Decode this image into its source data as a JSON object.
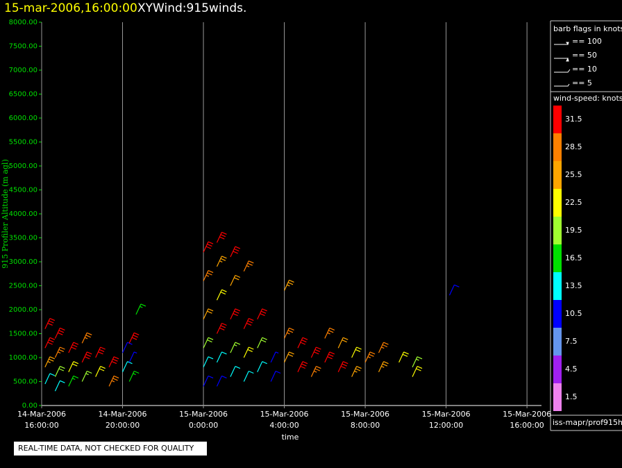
{
  "chart_data": {
    "type": "wind-barb",
    "title_time": "15-mar-2006,16:00:00",
    "title": "XYWind:915winds.",
    "y_label": "915 Profiler Altitude (m agl)",
    "x_label": "time",
    "ylim": [
      0,
      8000
    ],
    "yticks": [
      {
        "value": 0,
        "label": "0.00"
      },
      {
        "value": 500,
        "label": "500.00"
      },
      {
        "value": 1000,
        "label": "1000.00"
      },
      {
        "value": 1500,
        "label": "1500.00"
      },
      {
        "value": 2000,
        "label": "2000.00"
      },
      {
        "value": 2500,
        "label": "2500.00"
      },
      {
        "value": 3000,
        "label": "3000.00"
      },
      {
        "value": 3500,
        "label": "3500.00"
      },
      {
        "value": 4000,
        "label": "4000.00"
      },
      {
        "value": 4500,
        "label": "4500.00"
      },
      {
        "value": 5000,
        "label": "5000.00"
      },
      {
        "value": 5500,
        "label": "5500.00"
      },
      {
        "value": 6000,
        "label": "6000.00"
      },
      {
        "value": 6500,
        "label": "6500.00"
      },
      {
        "value": 7000,
        "label": "7000.00"
      },
      {
        "value": 7500,
        "label": "7500.00"
      },
      {
        "value": 8000,
        "label": "8000.00"
      }
    ],
    "xlim": [
      "14-Mar-2006 16:00:00",
      "15-Mar-2006 16:43:00"
    ],
    "xticks": [
      {
        "value": "14-Mar-2006 16:00:00",
        "label": [
          "14-Mar-2006",
          "16:00:00"
        ]
      },
      {
        "value": "14-Mar-2006 20:00:00",
        "label": [
          "14-Mar-2006",
          "20:00:00"
        ]
      },
      {
        "value": "15-Mar-2006 00:00:00",
        "label": [
          "15-Mar-2006",
          "0:00:00"
        ]
      },
      {
        "value": "15-Mar-2006 04:00:00",
        "label": [
          "15-Mar-2006",
          "4:00:00"
        ]
      },
      {
        "value": "15-Mar-2006 08:00:00",
        "label": [
          "15-Mar-2006",
          "8:00:00"
        ]
      },
      {
        "value": "15-Mar-2006 12:00:00",
        "label": [
          "15-Mar-2006",
          "12:00:00"
        ]
      },
      {
        "value": "15-Mar-2006 16:00:00",
        "label": [
          "15-Mar-2006",
          "16:00:00"
        ]
      }
    ],
    "barbs": {
      "x": [
        "14-Mar-2006 16:10",
        "14-Mar-2006 16:10",
        "14-Mar-2006 16:10",
        "14-Mar-2006 16:10",
        "14-Mar-2006 16:40",
        "14-Mar-2006 16:40",
        "14-Mar-2006 16:40",
        "14-Mar-2006 16:40",
        "14-Mar-2006 17:20",
        "14-Mar-2006 17:20",
        "14-Mar-2006 17:20",
        "14-Mar-2006 18:00",
        "14-Mar-2006 18:00",
        "14-Mar-2006 18:00",
        "14-Mar-2006 18:40",
        "14-Mar-2006 18:40",
        "14-Mar-2006 19:20",
        "14-Mar-2006 19:20",
        "14-Mar-2006 20:00",
        "14-Mar-2006 20:00",
        "14-Mar-2006 20:20",
        "14-Mar-2006 20:20",
        "14-Mar-2006 20:20",
        "14-Mar-2006 20:40",
        "15-Mar-2006 00:00",
        "15-Mar-2006 00:00",
        "15-Mar-2006 00:00",
        "15-Mar-2006 00:00",
        "15-Mar-2006 00:00",
        "15-Mar-2006 00:00",
        "15-Mar-2006 00:40",
        "15-Mar-2006 00:40",
        "15-Mar-2006 00:40",
        "15-Mar-2006 00:40",
        "15-Mar-2006 00:40",
        "15-Mar-2006 00:40",
        "15-Mar-2006 01:20",
        "15-Mar-2006 01:20",
        "15-Mar-2006 01:20",
        "15-Mar-2006 01:20",
        "15-Mar-2006 01:20",
        "15-Mar-2006 02:00",
        "15-Mar-2006 02:00",
        "15-Mar-2006 02:00",
        "15-Mar-2006 02:00",
        "15-Mar-2006 02:40",
        "15-Mar-2006 02:40",
        "15-Mar-2006 02:40",
        "15-Mar-2006 03:20",
        "15-Mar-2006 03:20",
        "15-Mar-2006 04:00",
        "15-Mar-2006 04:00",
        "15-Mar-2006 04:00",
        "15-Mar-2006 04:40",
        "15-Mar-2006 04:40",
        "15-Mar-2006 05:20",
        "15-Mar-2006 05:20",
        "15-Mar-2006 06:00",
        "15-Mar-2006 06:00",
        "15-Mar-2006 06:40",
        "15-Mar-2006 06:40",
        "15-Mar-2006 07:20",
        "15-Mar-2006 07:20",
        "15-Mar-2006 08:00",
        "15-Mar-2006 08:40",
        "15-Mar-2006 08:40",
        "15-Mar-2006 09:40",
        "15-Mar-2006 10:20",
        "15-Mar-2006 10:20",
        "15-Mar-2006 12:10"
      ],
      "altitude": [
        1600,
        1200,
        800,
        450,
        1400,
        1000,
        600,
        300,
        1100,
        700,
        400,
        1300,
        900,
        500,
        1000,
        600,
        800,
        400,
        1100,
        700,
        1300,
        900,
        500,
        1900,
        3200,
        2600,
        1800,
        1200,
        800,
        400,
        3400,
        2900,
        2200,
        1500,
        900,
        400,
        3100,
        2500,
        1800,
        1100,
        600,
        2800,
        1600,
        1000,
        500,
        1800,
        1200,
        700,
        900,
        500,
        2400,
        1400,
        900,
        1200,
        700,
        1000,
        600,
        1400,
        900,
        1200,
        700,
        1000,
        600,
        900,
        1100,
        700,
        900,
        800,
        600,
        2300
      ],
      "speed": [
        31,
        30,
        25,
        14,
        32,
        29,
        20,
        12,
        31,
        23,
        15,
        27,
        30,
        18,
        31,
        21,
        32,
        29,
        11,
        13,
        30,
        9,
        16,
        17,
        31,
        29,
        24,
        20,
        13,
        10,
        31,
        26,
        21,
        30,
        14,
        11,
        32,
        24,
        31,
        18,
        12,
        27,
        30,
        22,
        14,
        31,
        20,
        13,
        9,
        11,
        26,
        29,
        24,
        32,
        30,
        31,
        29,
        27,
        31,
        24,
        32,
        23,
        26,
        29,
        28,
        26,
        22,
        18,
        23,
        10
      ]
    },
    "barb_flags": {
      "title": "barb flags in knots",
      "entries": [
        "== 100",
        "== 50",
        "== 10",
        "== 5"
      ]
    },
    "colorbar": {
      "title": "wind-speed: knots",
      "levels": [
        31.5,
        28.5,
        25.5,
        22.5,
        19.5,
        16.5,
        13.5,
        10.5,
        7.5,
        4.5,
        1.5
      ],
      "colors": [
        "#ff0000",
        "#ff8000",
        "#ffa500",
        "#ffff00",
        "#a0ff30",
        "#00e000",
        "#00ffff",
        "#0000ff",
        "#6495ed",
        "#a020f0",
        "#ee82ee"
      ]
    },
    "source": "iss-mapr/prof915h",
    "quality_note": "REAL-TIME DATA, NOT CHECKED FOR QUALITY"
  }
}
